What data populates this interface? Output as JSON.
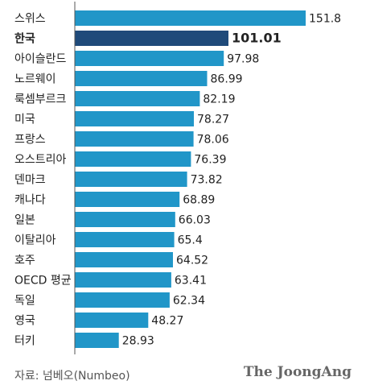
{
  "chart_data": {
    "type": "bar",
    "orientation": "horizontal",
    "categories": [
      "스위스",
      "한국",
      "아이슬란드",
      "노르웨이",
      "룩셈부르크",
      "미국",
      "프랑스",
      "오스트리아",
      "덴마크",
      "캐나다",
      "일본",
      "이탈리아",
      "호주",
      "OECD 평균",
      "독일",
      "영국",
      "터키"
    ],
    "values": [
      151.8,
      101.01,
      97.98,
      86.99,
      82.19,
      78.27,
      78.06,
      76.39,
      73.82,
      68.89,
      66.03,
      65.4,
      64.52,
      63.41,
      62.34,
      48.27,
      28.93
    ],
    "value_labels": [
      "151.8",
      "101.01",
      "97.98",
      "86.99",
      "82.19",
      "78.27",
      "78.06",
      "76.39",
      "73.82",
      "68.89",
      "66.03",
      "65.4",
      "64.52",
      "63.41",
      "62.34",
      "48.27",
      "28.93"
    ],
    "highlight_category": "한국",
    "title": "",
    "xlabel": "",
    "ylabel": "",
    "xlim": [
      0,
      151.8
    ],
    "grid": false,
    "legend": "none",
    "colors": {
      "bar": "#2196c8",
      "highlight_bar": "#1f4a7a",
      "axis": "#555555",
      "label": "#222222"
    }
  },
  "footer": {
    "source": "자료: 넘베오(Numbeo)",
    "brand": "The JoongAng"
  }
}
